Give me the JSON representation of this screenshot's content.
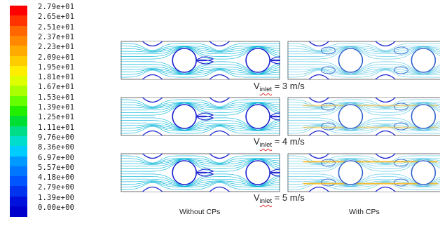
{
  "legend": {
    "labels": [
      "2.79e+01",
      "2.65e+01",
      "2.51e+01",
      "2.37e+01",
      "2.23e+01",
      "2.09e+01",
      "1.95e+01",
      "1.81e+01",
      "1.67e+01",
      "1.53e+01",
      "1.39e+01",
      "1.25e+01",
      "1.11e+01",
      "9.76e+00",
      "8.36e+00",
      "6.97e+00",
      "5.57e+00",
      "4.18e+00",
      "2.79e+00",
      "1.39e+00",
      "0.00e+00"
    ],
    "colors": [
      "#ff0000",
      "#ff3300",
      "#ff6600",
      "#ff8800",
      "#ffaa00",
      "#ffcc00",
      "#ffee00",
      "#ddff00",
      "#aaff00",
      "#66ff00",
      "#22ee00",
      "#00dd33",
      "#00dd88",
      "#00ddcc",
      "#00ccff",
      "#0099ff",
      "#0077ff",
      "#0055ff",
      "#0033ee",
      "#0011dd",
      "#0000cc"
    ]
  },
  "rows": [
    {
      "v_prefix": "V",
      "v_sub": "inlet",
      "v_value": " = 3 m/s"
    },
    {
      "v_prefix": "V",
      "v_sub": "inlet",
      "v_value": " = 4 m/s"
    },
    {
      "v_prefix": "V",
      "v_sub": "inlet",
      "v_value": " = 5 m/s"
    }
  ],
  "captions": {
    "left": "Without CPs",
    "right": "With CPs"
  },
  "colors": {
    "without_cp_stream": "#00b5d8",
    "with_cp_stream": "#59c8e6",
    "high_speed": "#1a22d0",
    "hot": "#ffb000"
  }
}
